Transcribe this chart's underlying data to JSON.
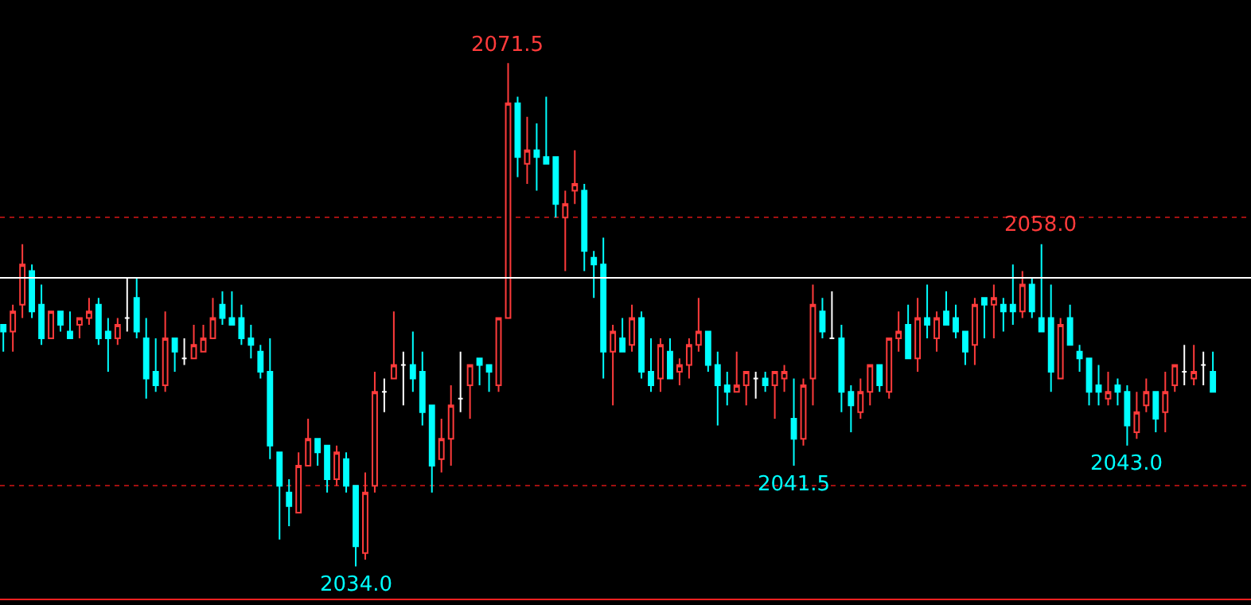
{
  "chart_data": {
    "type": "candlestick",
    "categories": [
      null,
      null,
      null,
      null,
      null,
      null,
      null,
      null,
      null,
      null,
      null,
      null,
      null,
      null,
      null,
      null,
      null,
      null,
      null,
      null,
      null,
      null,
      null,
      null,
      null,
      null,
      null,
      null,
      null,
      null,
      null,
      null,
      null,
      null,
      null,
      null,
      null,
      null,
      null,
      null,
      null,
      null,
      null,
      null,
      null,
      null,
      null,
      null,
      null,
      null,
      null,
      null,
      null,
      null,
      null,
      null,
      null,
      null,
      null,
      null,
      null,
      null,
      null,
      null,
      null,
      null,
      null,
      null,
      null,
      null,
      null,
      null,
      null,
      null,
      null,
      null,
      null,
      null,
      null,
      null,
      null,
      null,
      null,
      null,
      null,
      null,
      null,
      null,
      null,
      null,
      null,
      null,
      null,
      null,
      null,
      null,
      null,
      null,
      null,
      null,
      null,
      null,
      null,
      null,
      null,
      null,
      null,
      null,
      null,
      null,
      null,
      null,
      null,
      null,
      null,
      null,
      null,
      null,
      null,
      null,
      null,
      null,
      null,
      null,
      null,
      null,
      null,
      null
    ],
    "ohlc": [
      [
        2052,
        2052,
        2050,
        2051.5
      ],
      [
        2051.5,
        2053.5,
        2050,
        2053
      ],
      [
        2053.5,
        2058,
        2052.5,
        2056.5
      ],
      [
        2056,
        2056.5,
        2052.5,
        2053
      ],
      [
        2053.5,
        2055,
        2050.5,
        2051
      ],
      [
        2051,
        2053,
        2051,
        2053
      ],
      [
        2053,
        2053,
        2051.5,
        2052
      ],
      [
        2051.5,
        2053,
        2051,
        2051
      ],
      [
        2052,
        2052.5,
        2051,
        2052.5
      ],
      [
        2052.5,
        2054,
        2052,
        2053
      ],
      [
        2053.5,
        2054,
        2050.5,
        2051
      ],
      [
        2051.5,
        2052.5,
        2048.5,
        2051
      ],
      [
        2051,
        2052.5,
        2050.5,
        2052
      ],
      [
        2052.5,
        2055.5,
        2051.5,
        2052.5
      ],
      [
        2054,
        2055.5,
        2051,
        2051.5
      ],
      [
        2051,
        2052.5,
        2046.5,
        2048
      ],
      [
        2048.5,
        2051,
        2047,
        2047.5
      ],
      [
        2047.5,
        2053,
        2047,
        2051
      ],
      [
        2051,
        2051,
        2048.5,
        2050
      ],
      [
        2049.5,
        2051,
        2049,
        2049.5
      ],
      [
        2049.5,
        2052,
        2049.5,
        2050.5
      ],
      [
        2050,
        2052,
        2050,
        2051
      ],
      [
        2051,
        2054,
        2051,
        2052.5
      ],
      [
        2053.5,
        2054.5,
        2052,
        2052.5
      ],
      [
        2052.5,
        2054.5,
        2052,
        2052
      ],
      [
        2052.5,
        2053.5,
        2050.5,
        2051
      ],
      [
        2051,
        2052,
        2049.5,
        2050.5
      ],
      [
        2050,
        2050.5,
        2048,
        2048.5
      ],
      [
        2048.5,
        2051,
        2042,
        2043
      ],
      [
        2042.5,
        2042.5,
        2036,
        2040
      ],
      [
        2039.5,
        2040.5,
        2037,
        2038.5
      ],
      [
        2038,
        2042.5,
        2038,
        2041.5
      ],
      [
        2041.5,
        2045,
        2041.5,
        2043.5
      ],
      [
        2043.5,
        2043.5,
        2041.5,
        2042.5
      ],
      [
        2043,
        2043,
        2039.5,
        2040.5
      ],
      [
        2040.5,
        2043,
        2040,
        2042.5
      ],
      [
        2042,
        2042.5,
        2039.5,
        2040
      ],
      [
        2040,
        2040,
        2034,
        2035.5
      ],
      [
        2035,
        2041,
        2034.5,
        2039.5
      ],
      [
        2040,
        2048.5,
        2039.5,
        2047
      ],
      [
        2047,
        2048,
        2045.5,
        2047
      ],
      [
        2048,
        2053,
        2048,
        2049
      ],
      [
        2049,
        2050,
        2046,
        2049
      ],
      [
        2049,
        2051.5,
        2047,
        2048
      ],
      [
        2048.5,
        2050,
        2044.5,
        2045.5
      ],
      [
        2046,
        2046,
        2039.5,
        2041.5
      ],
      [
        2042,
        2045,
        2041,
        2043.5
      ],
      [
        2043.5,
        2047.5,
        2041.5,
        2046
      ],
      [
        2046.5,
        2050,
        2045.5,
        2046.5
      ],
      [
        2047.5,
        2049,
        2045,
        2049
      ],
      [
        2049.5,
        2049.5,
        2047.5,
        2049
      ],
      [
        2049,
        2049,
        2047,
        2048.5
      ],
      [
        2047.5,
        2052.5,
        2047,
        2052.5
      ],
      [
        2052.5,
        2071.5,
        2052.5,
        2068.5
      ],
      [
        2068.5,
        2069,
        2063,
        2064.5
      ],
      [
        2064,
        2067.5,
        2062.5,
        2065
      ],
      [
        2065,
        2067,
        2062,
        2064.5
      ],
      [
        2064.5,
        2069,
        2064,
        2064
      ],
      [
        2064.5,
        2064.5,
        2060,
        2061
      ],
      [
        2060,
        2062,
        2056,
        2061
      ],
      [
        2062,
        2065,
        2061,
        2062.5
      ],
      [
        2062,
        2062.5,
        2056,
        2057.5
      ],
      [
        2057,
        2057.5,
        2054,
        2056.5
      ],
      [
        2056.5,
        2058.5,
        2048,
        2050
      ],
      [
        2050,
        2052,
        2046,
        2051.5
      ],
      [
        2051,
        2052.5,
        2050,
        2050
      ],
      [
        2050.5,
        2053.5,
        2050,
        2052.5
      ],
      [
        2052.5,
        2053,
        2048,
        2048.5
      ],
      [
        2048.5,
        2051,
        2047,
        2047.5
      ],
      [
        2048,
        2051,
        2047,
        2050.5
      ],
      [
        2050,
        2051,
        2048,
        2048
      ],
      [
        2048.5,
        2049.5,
        2047.5,
        2049
      ],
      [
        2049,
        2051,
        2048,
        2050.5
      ],
      [
        2050.5,
        2054,
        2050,
        2051.5
      ],
      [
        2051.5,
        2051.5,
        2048.5,
        2049
      ],
      [
        2049,
        2050,
        2044.5,
        2047.5
      ],
      [
        2047.5,
        2048.5,
        2046,
        2047
      ],
      [
        2047,
        2050,
        2047,
        2047.5
      ],
      [
        2047.5,
        2048.5,
        2046,
        2048.5
      ],
      [
        2048,
        2048.5,
        2046.5,
        2048
      ],
      [
        2048,
        2048.5,
        2047,
        2047.5
      ],
      [
        2047.5,
        2048.5,
        2045,
        2048.5
      ],
      [
        2048,
        2049,
        2047,
        2048.5
      ],
      [
        2045,
        2048,
        2041.5,
        2043.5
      ],
      [
        2043.5,
        2048,
        2043,
        2047.5
      ],
      [
        2048,
        2055,
        2046,
        2053.5
      ],
      [
        2053,
        2054,
        2051,
        2051.5
      ],
      [
        2051,
        2054.5,
        2051,
        2051
      ],
      [
        2051,
        2052,
        2045.5,
        2047
      ],
      [
        2047,
        2047.5,
        2044,
        2046
      ],
      [
        2045.5,
        2048,
        2045,
        2047
      ],
      [
        2047,
        2049,
        2046,
        2049
      ],
      [
        2049,
        2049,
        2047,
        2047.5
      ],
      [
        2047,
        2051,
        2046.5,
        2051
      ],
      [
        2051,
        2053,
        2050,
        2051.5
      ],
      [
        2052,
        2053.5,
        2049.5,
        2049.5
      ],
      [
        2049.5,
        2054,
        2048.5,
        2052.5
      ],
      [
        2052.5,
        2055,
        2051,
        2052
      ],
      [
        2051,
        2053,
        2050,
        2052.5
      ],
      [
        2053,
        2054.5,
        2052,
        2052
      ],
      [
        2052.5,
        2053.5,
        2051,
        2051.5
      ],
      [
        2051.5,
        2051.5,
        2049,
        2050
      ],
      [
        2050.5,
        2054,
        2049,
        2053.5
      ],
      [
        2054,
        2054,
        2051,
        2053.5
      ],
      [
        2053.5,
        2055,
        2051,
        2054
      ],
      [
        2053.5,
        2054,
        2051.5,
        2053
      ],
      [
        2053.5,
        2056.5,
        2052,
        2053
      ],
      [
        2053,
        2056,
        2052.5,
        2055
      ],
      [
        2055,
        2055.5,
        2052.5,
        2053
      ],
      [
        2052.5,
        2058,
        2051.5,
        2051.5
      ],
      [
        2052.5,
        2055,
        2047,
        2048.5
      ],
      [
        2048,
        2052.5,
        2048,
        2052
      ],
      [
        2052.5,
        2053.5,
        2050.5,
        2050.5
      ],
      [
        2050,
        2050.5,
        2048.5,
        2049.5
      ],
      [
        2049.5,
        2049.5,
        2046,
        2047
      ],
      [
        2047.5,
        2049,
        2046,
        2047
      ],
      [
        2046.5,
        2048.5,
        2046,
        2047
      ],
      [
        2047.5,
        2048,
        2046,
        2047
      ],
      [
        2047,
        2047.5,
        2043,
        2044.5
      ],
      [
        2044,
        2047,
        2043.5,
        2045.5
      ],
      [
        2046,
        2048,
        2045.5,
        2047
      ],
      [
        2047,
        2047,
        2044,
        2045
      ],
      [
        2045.5,
        2048.5,
        2044,
        2047
      ],
      [
        2047.5,
        2049,
        2047,
        2049
      ],
      [
        2048.5,
        2050.5,
        2047.5,
        2048.5
      ],
      [
        2048,
        2050.5,
        2047.5,
        2048.5
      ],
      [
        2049,
        2050,
        2047.5,
        2049
      ],
      [
        2048.5,
        2050,
        2047,
        2047
      ]
    ],
    "colors": [
      "#00ffff",
      "#ff3b3b",
      "#ff3b3b",
      "#00ffff",
      "#00ffff",
      "#ff3b3b",
      "#00ffff",
      "#00ffff",
      "#ff3b3b",
      "#ff3b3b",
      "#00ffff",
      "#00ffff",
      "#ff3b3b",
      "#ffffff",
      "#00ffff",
      "#00ffff",
      "#00ffff",
      "#ff3b3b",
      "#00ffff",
      "#ffffff",
      "#ff3b3b",
      "#ff3b3b",
      "#ff3b3b",
      "#00ffff",
      "#00ffff",
      "#00ffff",
      "#00ffff",
      "#00ffff",
      "#00ffff",
      "#00ffff",
      "#00ffff",
      "#ff3b3b",
      "#ff3b3b",
      "#00ffff",
      "#00ffff",
      "#ff3b3b",
      "#00ffff",
      "#00ffff",
      "#ff3b3b",
      "#ff3b3b",
      "#ffffff",
      "#ff3b3b",
      "#ffffff",
      "#00ffff",
      "#00ffff",
      "#00ffff",
      "#ff3b3b",
      "#ff3b3b",
      "#ffffff",
      "#ff3b3b",
      "#00ffff",
      "#00ffff",
      "#ff3b3b",
      "#ff3b3b",
      "#00ffff",
      "#ff3b3b",
      "#00ffff",
      "#00ffff",
      "#00ffff",
      "#ff3b3b",
      "#ff3b3b",
      "#00ffff",
      "#00ffff",
      "#00ffff",
      "#ff3b3b",
      "#00ffff",
      "#ff3b3b",
      "#00ffff",
      "#00ffff",
      "#ff3b3b",
      "#00ffff",
      "#ff3b3b",
      "#ff3b3b",
      "#ff3b3b",
      "#00ffff",
      "#00ffff",
      "#00ffff",
      "#ff3b3b",
      "#ff3b3b",
      "#ffffff",
      "#00ffff",
      "#ff3b3b",
      "#ff3b3b",
      "#00ffff",
      "#ff3b3b",
      "#ff3b3b",
      "#00ffff",
      "#ffffff",
      "#00ffff",
      "#00ffff",
      "#ff3b3b",
      "#ff3b3b",
      "#00ffff",
      "#ff3b3b",
      "#ff3b3b",
      "#00ffff",
      "#ff3b3b",
      "#00ffff",
      "#ff3b3b",
      "#00ffff",
      "#00ffff",
      "#00ffff",
      "#ff3b3b",
      "#00ffff",
      "#ff3b3b",
      "#00ffff",
      "#00ffff",
      "#ff3b3b",
      "#00ffff",
      "#00ffff",
      "#00ffff",
      "#ff3b3b",
      "#00ffff",
      "#00ffff",
      "#00ffff",
      "#00ffff",
      "#ff3b3b",
      "#00ffff",
      "#00ffff",
      "#ff3b3b",
      "#ff3b3b",
      "#00ffff",
      "#ff3b3b",
      "#ff3b3b",
      "#ffffff",
      "#ff3b3b",
      "#ffffff",
      "#00ffff"
    ],
    "ylim": [
      2031.6,
      2076.2
    ],
    "yticks": [
      {
        "value": 2040,
        "label": null
      },
      {
        "value": 2060,
        "label": null
      }
    ],
    "grid": "y",
    "ref_lines": [
      {
        "axis": "y",
        "value": 2055.5,
        "color": "#ffffff"
      }
    ],
    "annotations": [
      {
        "text": "2071.5",
        "y": 2071.5
      },
      {
        "text": "2058.0",
        "y": 2058.0
      },
      {
        "text": "2034.0",
        "y": 2034.0
      },
      {
        "text": "2041.5",
        "y": 2041.5
      },
      {
        "text": "2043.0",
        "y": 2043.0
      }
    ]
  }
}
